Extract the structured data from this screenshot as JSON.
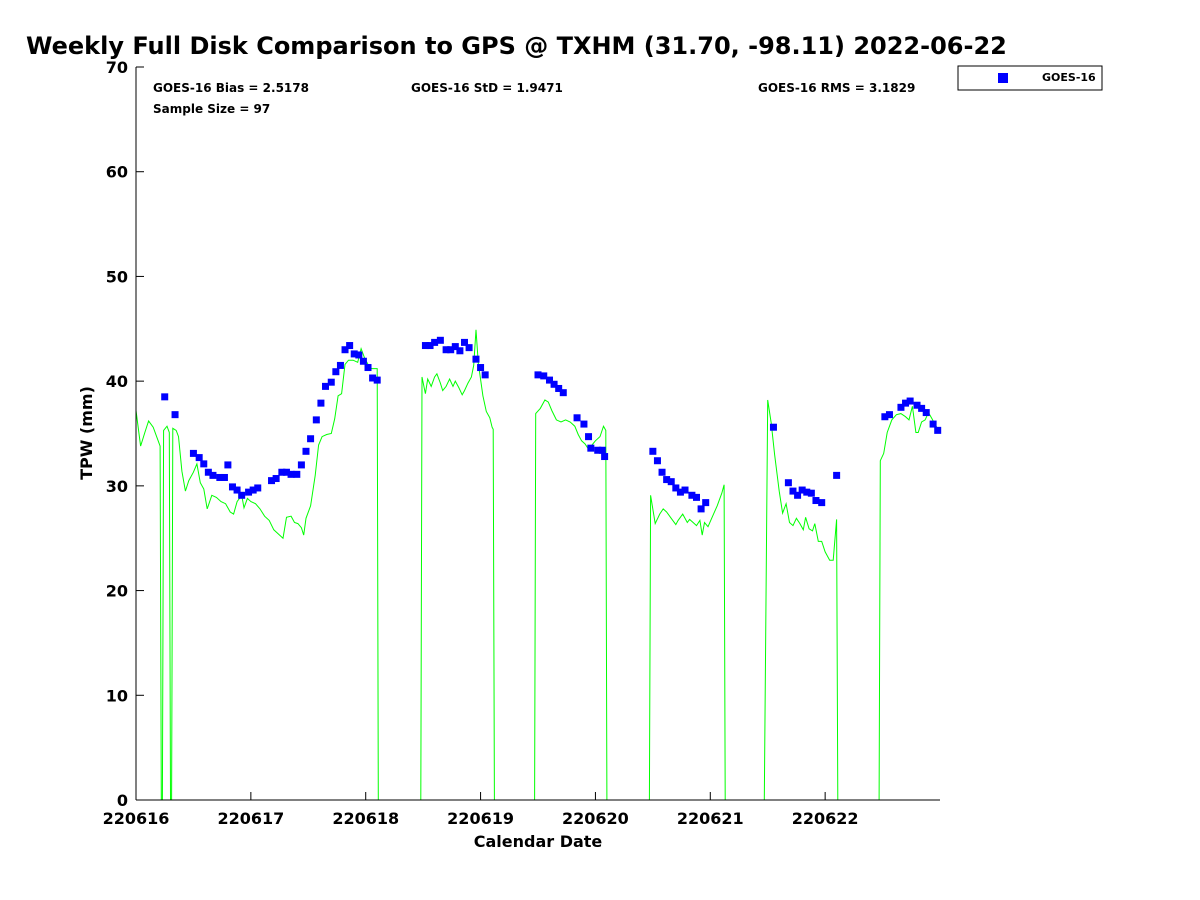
{
  "chart_data": {
    "type": "scatter",
    "title": "Weekly Full Disk Comparison to GPS @ TXHM (31.70, -98.11) 2022-06-22",
    "xlabel": "Calendar Date",
    "ylabel": "TPW (mm)",
    "xlim": [
      0,
      7
    ],
    "ylim": [
      0,
      70
    ],
    "x_ticks": [
      0,
      1,
      2,
      3,
      4,
      5,
      6
    ],
    "x_tick_labels": [
      "220616",
      "220617",
      "220618",
      "220619",
      "220620",
      "220621",
      "220622"
    ],
    "y_ticks": [
      0,
      10,
      20,
      30,
      40,
      50,
      60,
      70
    ],
    "y_tick_labels": [
      "0",
      "10",
      "20",
      "30",
      "40",
      "50",
      "60",
      "70"
    ],
    "x_units": "days since 2022-06-16 00:00",
    "stats": {
      "bias": "GOES-16 Bias = 2.5178",
      "std": "GOES-16 StD = 1.9471",
      "rms": "GOES-16 RMS = 3.1829",
      "sample": "Sample Size = 97"
    },
    "legend": {
      "placement": "top-right-outside",
      "entries": [
        {
          "label": "GOES-16",
          "color": "#0000ff",
          "marker": "square"
        }
      ]
    },
    "series": [
      {
        "name": "GOES-16",
        "color": "#0000ff",
        "marker": "square",
        "points": [
          [
            0.25,
            38.5
          ],
          [
            0.34,
            36.8
          ],
          [
            0.5,
            33.1
          ],
          [
            0.55,
            32.7
          ],
          [
            0.59,
            32.1
          ],
          [
            0.63,
            31.3
          ],
          [
            0.67,
            31.0
          ],
          [
            0.73,
            30.8
          ],
          [
            0.77,
            30.8
          ],
          [
            0.8,
            32.0
          ],
          [
            0.84,
            29.9
          ],
          [
            0.88,
            29.6
          ],
          [
            0.92,
            29.1
          ],
          [
            0.98,
            29.4
          ],
          [
            1.02,
            29.6
          ],
          [
            1.06,
            29.8
          ],
          [
            1.18,
            30.5
          ],
          [
            1.22,
            30.7
          ],
          [
            1.27,
            31.3
          ],
          [
            1.31,
            31.3
          ],
          [
            1.35,
            31.1
          ],
          [
            1.4,
            31.1
          ],
          [
            1.44,
            32.0
          ],
          [
            1.48,
            33.3
          ],
          [
            1.52,
            34.5
          ],
          [
            1.57,
            36.3
          ],
          [
            1.61,
            37.9
          ],
          [
            1.65,
            39.5
          ],
          [
            1.7,
            39.9
          ],
          [
            1.74,
            40.9
          ],
          [
            1.78,
            41.5
          ],
          [
            1.82,
            43.0
          ],
          [
            1.86,
            43.4
          ],
          [
            1.9,
            42.6
          ],
          [
            1.94,
            42.5
          ],
          [
            1.98,
            41.9
          ],
          [
            2.02,
            41.3
          ],
          [
            2.06,
            40.3
          ],
          [
            2.1,
            40.1
          ],
          [
            2.52,
            43.4
          ],
          [
            2.56,
            43.4
          ],
          [
            2.6,
            43.7
          ],
          [
            2.65,
            43.9
          ],
          [
            2.7,
            43.0
          ],
          [
            2.74,
            43.0
          ],
          [
            2.78,
            43.3
          ],
          [
            2.82,
            42.9
          ],
          [
            2.86,
            43.7
          ],
          [
            2.9,
            43.2
          ],
          [
            2.96,
            42.1
          ],
          [
            3.0,
            41.3
          ],
          [
            3.04,
            40.6
          ],
          [
            3.5,
            40.6
          ],
          [
            3.55,
            40.5
          ],
          [
            3.6,
            40.1
          ],
          [
            3.64,
            39.7
          ],
          [
            3.68,
            39.3
          ],
          [
            3.72,
            38.9
          ],
          [
            3.84,
            36.5
          ],
          [
            3.9,
            35.9
          ],
          [
            3.94,
            34.7
          ],
          [
            3.96,
            33.6
          ],
          [
            4.02,
            33.4
          ],
          [
            4.06,
            33.4
          ],
          [
            4.08,
            32.8
          ],
          [
            4.5,
            33.3
          ],
          [
            4.54,
            32.4
          ],
          [
            4.58,
            31.3
          ],
          [
            4.62,
            30.6
          ],
          [
            4.66,
            30.4
          ],
          [
            4.7,
            29.8
          ],
          [
            4.74,
            29.4
          ],
          [
            4.78,
            29.6
          ],
          [
            4.84,
            29.1
          ],
          [
            4.88,
            28.9
          ],
          [
            4.92,
            27.8
          ],
          [
            4.96,
            28.4
          ],
          [
            5.55,
            35.6
          ],
          [
            5.68,
            30.3
          ],
          [
            5.72,
            29.5
          ],
          [
            5.76,
            29.1
          ],
          [
            5.8,
            29.6
          ],
          [
            5.84,
            29.4
          ],
          [
            5.88,
            29.3
          ],
          [
            5.92,
            28.6
          ],
          [
            5.97,
            28.4
          ],
          [
            6.1,
            31.0
          ],
          [
            6.52,
            36.6
          ],
          [
            6.56,
            36.8
          ],
          [
            6.66,
            37.5
          ],
          [
            6.7,
            37.9
          ],
          [
            6.74,
            38.1
          ],
          [
            6.8,
            37.7
          ],
          [
            6.84,
            37.4
          ],
          [
            6.88,
            37.0
          ],
          [
            6.94,
            35.9
          ],
          [
            6.98,
            35.3
          ]
        ]
      },
      {
        "name": "",
        "color": "#00ff00",
        "type": "line",
        "points": [
          [
            0.0,
            37.2
          ],
          [
            0.04,
            33.8
          ],
          [
            0.08,
            35.2
          ],
          [
            0.11,
            36.2
          ],
          [
            0.15,
            35.6
          ],
          [
            0.19,
            34.4
          ],
          [
            0.21,
            33.8
          ],
          [
            0.22,
            0.0
          ],
          [
            0.23,
            0.0
          ],
          [
            0.24,
            35.3
          ],
          [
            0.27,
            35.7
          ],
          [
            0.29,
            35.1
          ],
          [
            0.3,
            0.0
          ],
          [
            0.31,
            0.0
          ],
          [
            0.32,
            35.5
          ],
          [
            0.35,
            35.3
          ],
          [
            0.37,
            34.7
          ],
          [
            0.4,
            31.4
          ],
          [
            0.43,
            29.5
          ],
          [
            0.46,
            30.5
          ],
          [
            0.5,
            31.3
          ],
          [
            0.53,
            32.1
          ],
          [
            0.56,
            30.3
          ],
          [
            0.59,
            29.7
          ],
          [
            0.62,
            27.8
          ],
          [
            0.66,
            29.1
          ],
          [
            0.7,
            28.9
          ],
          [
            0.74,
            28.5
          ],
          [
            0.78,
            28.3
          ],
          [
            0.82,
            27.5
          ],
          [
            0.85,
            27.3
          ],
          [
            0.88,
            28.5
          ],
          [
            0.92,
            29.1
          ],
          [
            0.94,
            27.9
          ],
          [
            0.97,
            28.8
          ],
          [
            1.0,
            28.5
          ],
          [
            1.04,
            28.3
          ],
          [
            1.08,
            27.8
          ],
          [
            1.12,
            27.1
          ],
          [
            1.16,
            26.7
          ],
          [
            1.2,
            25.8
          ],
          [
            1.25,
            25.3
          ],
          [
            1.28,
            25.0
          ],
          [
            1.31,
            27.0
          ],
          [
            1.35,
            27.1
          ],
          [
            1.38,
            26.5
          ],
          [
            1.41,
            26.4
          ],
          [
            1.44,
            26.0
          ],
          [
            1.46,
            25.3
          ],
          [
            1.48,
            26.9
          ],
          [
            1.52,
            28.1
          ],
          [
            1.56,
            31.0
          ],
          [
            1.59,
            33.9
          ],
          [
            1.62,
            34.7
          ],
          [
            1.66,
            34.9
          ],
          [
            1.7,
            35.0
          ],
          [
            1.73,
            36.4
          ],
          [
            1.76,
            38.6
          ],
          [
            1.79,
            38.8
          ],
          [
            1.82,
            41.6
          ],
          [
            1.85,
            42.0
          ],
          [
            1.89,
            42.0
          ],
          [
            1.93,
            41.8
          ],
          [
            1.96,
            43.1
          ],
          [
            1.99,
            42.2
          ],
          [
            2.02,
            41.6
          ],
          [
            2.05,
            41.2
          ],
          [
            2.08,
            41.2
          ],
          [
            2.1,
            41.2
          ],
          [
            2.11,
            0.0
          ],
          [
            2.48,
            0.0
          ],
          [
            2.49,
            40.4
          ],
          [
            2.52,
            38.8
          ],
          [
            2.54,
            40.2
          ],
          [
            2.57,
            39.5
          ],
          [
            2.6,
            40.4
          ],
          [
            2.62,
            40.7
          ],
          [
            2.65,
            39.8
          ],
          [
            2.67,
            39.1
          ],
          [
            2.7,
            39.5
          ],
          [
            2.73,
            40.2
          ],
          [
            2.76,
            39.5
          ],
          [
            2.78,
            40.0
          ],
          [
            2.81,
            39.4
          ],
          [
            2.84,
            38.7
          ],
          [
            2.86,
            39.1
          ],
          [
            2.89,
            39.8
          ],
          [
            2.92,
            40.4
          ],
          [
            2.94,
            41.5
          ],
          [
            2.96,
            44.9
          ],
          [
            2.98,
            41.7
          ],
          [
            3.02,
            38.6
          ],
          [
            3.05,
            37.1
          ],
          [
            3.08,
            36.5
          ],
          [
            3.1,
            35.6
          ],
          [
            3.11,
            35.4
          ],
          [
            3.12,
            0.0
          ],
          [
            3.47,
            0.0
          ],
          [
            3.48,
            36.9
          ],
          [
            3.52,
            37.4
          ],
          [
            3.56,
            38.2
          ],
          [
            3.59,
            38.0
          ],
          [
            3.62,
            37.2
          ],
          [
            3.66,
            36.3
          ],
          [
            3.7,
            36.1
          ],
          [
            3.74,
            36.3
          ],
          [
            3.78,
            36.1
          ],
          [
            3.82,
            35.7
          ],
          [
            3.85,
            34.9
          ],
          [
            3.88,
            34.3
          ],
          [
            3.91,
            34.0
          ],
          [
            3.94,
            33.5
          ],
          [
            3.97,
            33.9
          ],
          [
            4.0,
            34.3
          ],
          [
            4.04,
            34.7
          ],
          [
            4.07,
            35.7
          ],
          [
            4.09,
            35.3
          ],
          [
            4.1,
            0.0
          ],
          [
            4.47,
            0.0
          ],
          [
            4.48,
            29.1
          ],
          [
            4.52,
            26.4
          ],
          [
            4.56,
            27.3
          ],
          [
            4.59,
            27.8
          ],
          [
            4.62,
            27.5
          ],
          [
            4.66,
            26.9
          ],
          [
            4.7,
            26.3
          ],
          [
            4.72,
            26.7
          ],
          [
            4.76,
            27.3
          ],
          [
            4.8,
            26.5
          ],
          [
            4.82,
            26.8
          ],
          [
            4.85,
            26.5
          ],
          [
            4.88,
            26.2
          ],
          [
            4.91,
            26.7
          ],
          [
            4.93,
            25.3
          ],
          [
            4.95,
            26.5
          ],
          [
            4.98,
            26.1
          ],
          [
            5.02,
            27.1
          ],
          [
            5.06,
            28.1
          ],
          [
            5.1,
            29.3
          ],
          [
            5.12,
            30.1
          ],
          [
            5.13,
            0.0
          ],
          [
            5.47,
            0.0
          ],
          [
            5.5,
            38.2
          ],
          [
            5.53,
            36.0
          ],
          [
            5.56,
            33.0
          ],
          [
            5.6,
            29.5
          ],
          [
            5.63,
            27.4
          ],
          [
            5.66,
            28.3
          ],
          [
            5.69,
            26.5
          ],
          [
            5.72,
            26.2
          ],
          [
            5.75,
            26.9
          ],
          [
            5.78,
            26.4
          ],
          [
            5.81,
            25.8
          ],
          [
            5.83,
            27.0
          ],
          [
            5.86,
            25.9
          ],
          [
            5.89,
            25.7
          ],
          [
            5.91,
            26.4
          ],
          [
            5.94,
            24.7
          ],
          [
            5.97,
            24.7
          ],
          [
            6.0,
            23.7
          ],
          [
            6.04,
            22.9
          ],
          [
            6.07,
            22.9
          ],
          [
            6.1,
            26.8
          ],
          [
            6.11,
            0.0
          ],
          [
            6.47,
            0.0
          ],
          [
            6.48,
            32.4
          ],
          [
            6.51,
            33.1
          ],
          [
            6.54,
            35.1
          ],
          [
            6.58,
            36.3
          ],
          [
            6.62,
            36.8
          ],
          [
            6.66,
            36.9
          ],
          [
            6.7,
            36.6
          ],
          [
            6.73,
            36.3
          ],
          [
            6.76,
            37.6
          ],
          [
            6.79,
            35.1
          ],
          [
            6.81,
            35.1
          ],
          [
            6.84,
            36.1
          ],
          [
            6.87,
            36.3
          ],
          [
            6.9,
            37.0
          ],
          [
            6.93,
            36.4
          ],
          [
            6.96,
            35.8
          ],
          [
            6.99,
            35.3
          ]
        ]
      }
    ]
  }
}
